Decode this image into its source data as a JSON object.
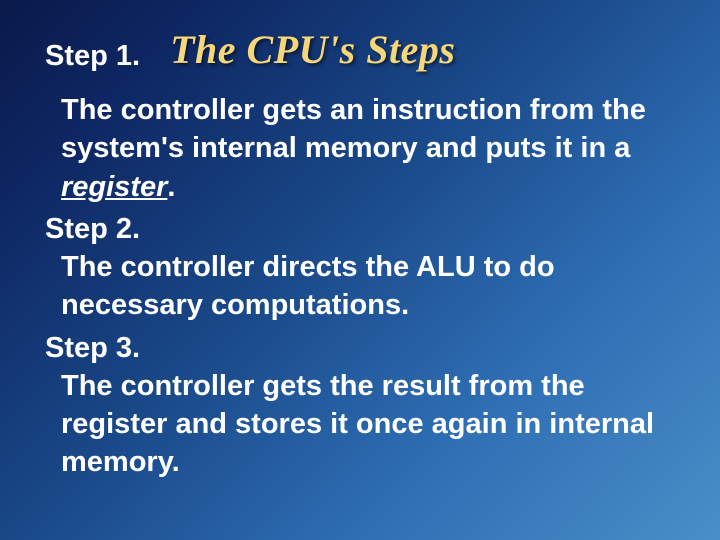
{
  "title": "The CPU's Steps",
  "colors": {
    "title_color": "#f5d77a",
    "text_color": "#ffffff",
    "bg_gradient_start": "#0a1a4a",
    "bg_gradient_end": "#4a8fc8"
  },
  "typography": {
    "title_font": "Times New Roman",
    "title_fontsize": 40,
    "title_italic": true,
    "title_bold": true,
    "body_font": "Arial",
    "body_fontsize": 29,
    "body_bold": true
  },
  "steps": [
    {
      "label": "Step 1.",
      "body_pre": "The controller gets an instruction from the system's internal memory and puts it in a ",
      "emphasis": "register",
      "body_post": "."
    },
    {
      "label": "Step 2.",
      "body": "The controller directs the ALU to do necessary computations."
    },
    {
      "label": "Step 3.",
      "body": "The controller gets the result from the register and stores it once again in internal memory."
    }
  ]
}
